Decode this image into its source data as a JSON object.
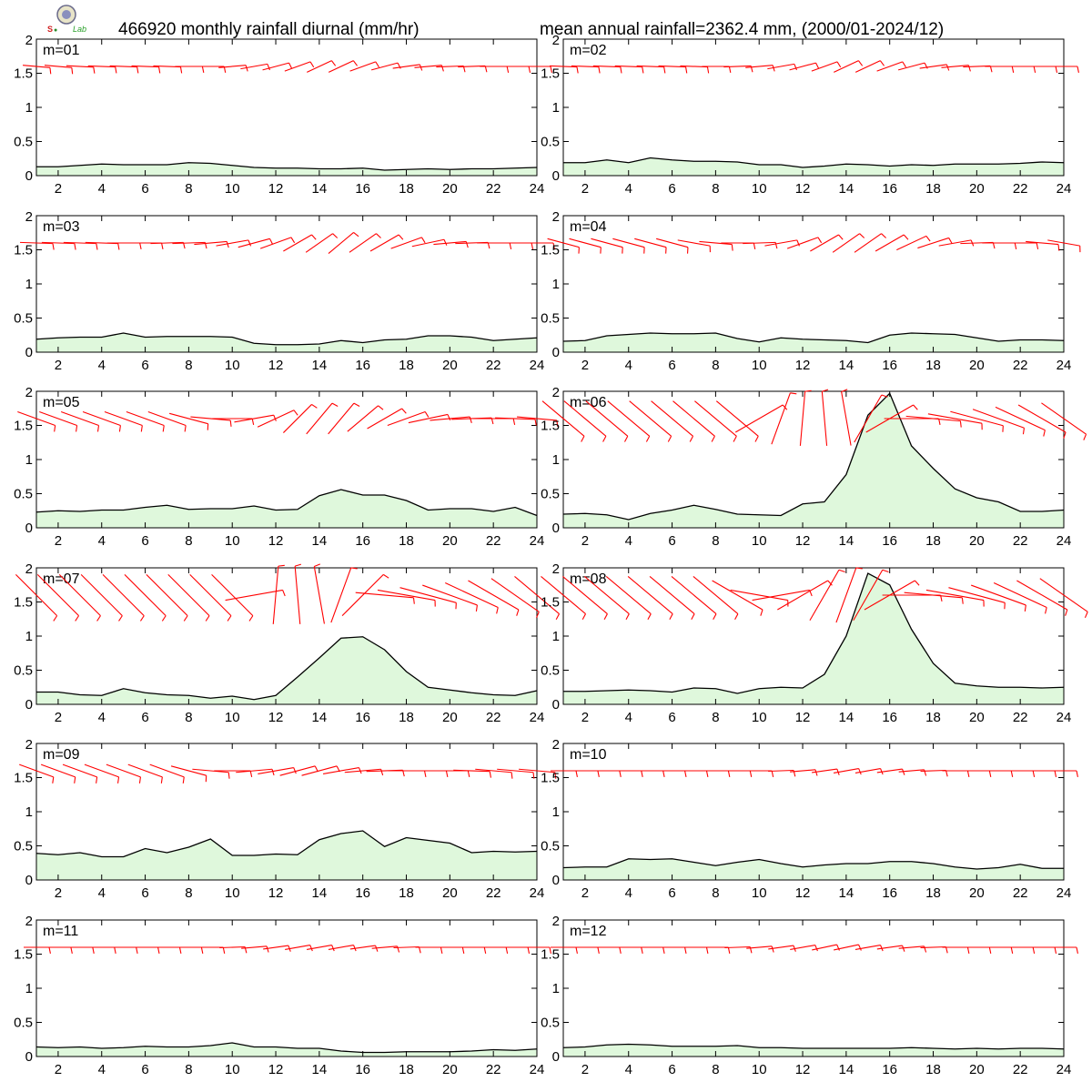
{
  "header": {
    "title_left": "466920 monthly rainfall diurnal (mm/hr)",
    "title_right": "mean annual rainfall=2362.4 mm, (2000/01-2024/12)",
    "logo_text": "Lab"
  },
  "colors": {
    "area_fill": "#dff8dc",
    "rain_line": "#000000",
    "wind_barb": "#ff0000",
    "frame": "#000000"
  },
  "chart_data": {
    "type": "area",
    "panel_type": "small-multiples",
    "title": "466920 monthly rainfall diurnal (mm/hr)",
    "subtitle": "mean annual rainfall=2362.4 mm, (2000/01-2024/12)",
    "x": [
      1,
      2,
      3,
      4,
      5,
      6,
      7,
      8,
      9,
      10,
      11,
      12,
      13,
      14,
      15,
      16,
      17,
      18,
      19,
      20,
      21,
      22,
      23,
      24
    ],
    "xticks": [
      2,
      4,
      6,
      8,
      10,
      12,
      14,
      16,
      18,
      20,
      22,
      24
    ],
    "xlim": [
      1,
      24
    ],
    "ylim": [
      0,
      2
    ],
    "yticks": [
      0,
      0.5,
      1,
      1.5,
      2
    ],
    "ytick_labels": [
      "0",
      "0.5",
      "1",
      "1.5",
      "2"
    ],
    "overlay": "red wind barbs drawn along y = 1.6 for each hour",
    "panels": [
      {
        "label": "m=01",
        "values": [
          0.13,
          0.13,
          0.15,
          0.17,
          0.16,
          0.16,
          0.16,
          0.19,
          0.18,
          0.15,
          0.12,
          0.11,
          0.11,
          0.1,
          0.1,
          0.11,
          0.08,
          0.09,
          0.1,
          0.09,
          0.1,
          0.1,
          0.11,
          0.12
        ]
      },
      {
        "label": "m=02",
        "values": [
          0.19,
          0.19,
          0.23,
          0.19,
          0.26,
          0.23,
          0.21,
          0.21,
          0.2,
          0.16,
          0.16,
          0.12,
          0.14,
          0.17,
          0.16,
          0.14,
          0.16,
          0.15,
          0.17,
          0.17,
          0.17,
          0.18,
          0.2,
          0.19
        ]
      },
      {
        "label": "m=03",
        "values": [
          0.19,
          0.21,
          0.22,
          0.22,
          0.28,
          0.22,
          0.23,
          0.23,
          0.23,
          0.22,
          0.13,
          0.11,
          0.11,
          0.12,
          0.17,
          0.14,
          0.18,
          0.19,
          0.24,
          0.24,
          0.22,
          0.17,
          0.19,
          0.21
        ]
      },
      {
        "label": "m=04",
        "values": [
          0.16,
          0.17,
          0.24,
          0.26,
          0.28,
          0.27,
          0.27,
          0.28,
          0.2,
          0.15,
          0.21,
          0.19,
          0.18,
          0.17,
          0.14,
          0.25,
          0.28,
          0.27,
          0.26,
          0.21,
          0.16,
          0.18,
          0.18,
          0.17
        ]
      },
      {
        "label": "m=05",
        "values": [
          0.23,
          0.25,
          0.24,
          0.26,
          0.26,
          0.3,
          0.33,
          0.27,
          0.28,
          0.28,
          0.32,
          0.26,
          0.27,
          0.47,
          0.56,
          0.48,
          0.48,
          0.4,
          0.26,
          0.28,
          0.28,
          0.24,
          0.3,
          0.18
        ]
      },
      {
        "label": "m=06",
        "values": [
          0.2,
          0.21,
          0.19,
          0.12,
          0.21,
          0.26,
          0.33,
          0.27,
          0.2,
          0.19,
          0.18,
          0.35,
          0.38,
          0.78,
          1.65,
          1.97,
          1.2,
          0.87,
          0.57,
          0.44,
          0.38,
          0.24,
          0.24,
          0.26
        ]
      },
      {
        "label": "m=07",
        "values": [
          0.18,
          0.18,
          0.14,
          0.13,
          0.23,
          0.17,
          0.14,
          0.13,
          0.09,
          0.12,
          0.07,
          0.13,
          0.4,
          0.68,
          0.97,
          0.99,
          0.8,
          0.48,
          0.25,
          0.21,
          0.17,
          0.14,
          0.13,
          0.2
        ]
      },
      {
        "label": "m=08",
        "values": [
          0.19,
          0.19,
          0.2,
          0.21,
          0.2,
          0.18,
          0.24,
          0.23,
          0.16,
          0.23,
          0.25,
          0.24,
          0.44,
          1.0,
          1.92,
          1.75,
          1.1,
          0.6,
          0.31,
          0.27,
          0.25,
          0.25,
          0.24,
          0.25
        ]
      },
      {
        "label": "m=09",
        "values": [
          0.39,
          0.37,
          0.4,
          0.34,
          0.34,
          0.46,
          0.4,
          0.48,
          0.6,
          0.36,
          0.36,
          0.38,
          0.37,
          0.59,
          0.68,
          0.72,
          0.49,
          0.62,
          0.58,
          0.54,
          0.4,
          0.42,
          0.41,
          0.42
        ]
      },
      {
        "label": "m=10",
        "values": [
          0.18,
          0.19,
          0.19,
          0.31,
          0.3,
          0.31,
          0.26,
          0.21,
          0.26,
          0.3,
          0.24,
          0.19,
          0.22,
          0.24,
          0.24,
          0.27,
          0.27,
          0.24,
          0.19,
          0.16,
          0.18,
          0.23,
          0.17,
          0.17
        ]
      },
      {
        "label": "m=11",
        "values": [
          0.14,
          0.13,
          0.14,
          0.12,
          0.13,
          0.15,
          0.14,
          0.14,
          0.16,
          0.2,
          0.14,
          0.14,
          0.12,
          0.12,
          0.08,
          0.06,
          0.06,
          0.07,
          0.07,
          0.07,
          0.08,
          0.1,
          0.09,
          0.11
        ]
      },
      {
        "label": "m=12",
        "values": [
          0.13,
          0.14,
          0.17,
          0.18,
          0.17,
          0.15,
          0.15,
          0.15,
          0.16,
          0.13,
          0.13,
          0.12,
          0.12,
          0.12,
          0.12,
          0.12,
          0.13,
          0.12,
          0.11,
          0.12,
          0.11,
          0.12,
          0.12,
          0.11
        ]
      }
    ],
    "wind_barbs": [
      {
        "dir_deg": [
          95,
          95,
          93,
          92,
          92,
          92,
          92,
          90,
          90,
          85,
          80,
          75,
          70,
          65,
          65,
          70,
          75,
          82,
          85,
          88,
          88,
          90,
          90,
          90
        ],
        "len_px": 15
      },
      {
        "dir_deg": [
          92,
          92,
          92,
          92,
          92,
          92,
          92,
          90,
          88,
          85,
          80,
          75,
          70,
          65,
          65,
          70,
          75,
          82,
          85,
          88,
          90,
          90,
          90,
          90
        ],
        "len_px": 15
      },
      {
        "dir_deg": [
          92,
          92,
          92,
          92,
          90,
          90,
          88,
          88,
          85,
          80,
          75,
          70,
          60,
          55,
          50,
          55,
          60,
          70,
          78,
          85,
          88,
          90,
          90,
          90
        ],
        "len_px": 18
      },
      {
        "dir_deg": [
          105,
          105,
          105,
          105,
          105,
          105,
          100,
          95,
          90,
          88,
          80,
          70,
          60,
          55,
          55,
          60,
          65,
          72,
          80,
          88,
          90,
          90,
          95,
          100
        ],
        "len_px": 18
      },
      {
        "dir_deg": [
          110,
          110,
          110,
          110,
          110,
          110,
          110,
          105,
          95,
          90,
          80,
          65,
          45,
          40,
          40,
          50,
          60,
          70,
          78,
          85,
          88,
          90,
          92,
          95
        ],
        "len_px": 22
      },
      {
        "dir_deg": [
          130,
          130,
          130,
          130,
          130,
          130,
          130,
          130,
          130,
          60,
          20,
          5,
          355,
          350,
          30,
          60,
          90,
          95,
          100,
          105,
          110,
          115,
          120,
          125
        ],
        "len_px": 30
      },
      {
        "dir_deg": [
          135,
          135,
          135,
          135,
          135,
          135,
          135,
          135,
          135,
          135,
          80,
          5,
          355,
          350,
          20,
          45,
          95,
          100,
          105,
          110,
          115,
          120,
          125,
          130
        ],
        "len_px": 32
      },
      {
        "dir_deg": [
          130,
          130,
          130,
          130,
          130,
          130,
          130,
          130,
          120,
          100,
          80,
          60,
          30,
          20,
          30,
          60,
          90,
          95,
          100,
          105,
          110,
          115,
          120,
          125
        ],
        "len_px": 32
      },
      {
        "dir_deg": [
          110,
          110,
          110,
          110,
          110,
          110,
          110,
          105,
          95,
          90,
          85,
          80,
          75,
          75,
          80,
          85,
          88,
          90,
          90,
          90,
          92,
          95,
          95,
          95
        ],
        "len_px": 20
      },
      {
        "dir_deg": [
          90,
          90,
          90,
          90,
          90,
          90,
          90,
          90,
          90,
          90,
          88,
          85,
          82,
          80,
          80,
          82,
          85,
          88,
          90,
          90,
          90,
          90,
          90,
          90
        ],
        "len_px": 14
      },
      {
        "dir_deg": [
          90,
          90,
          90,
          90,
          90,
          90,
          90,
          90,
          90,
          88,
          85,
          82,
          80,
          80,
          80,
          82,
          85,
          88,
          90,
          90,
          90,
          90,
          90,
          90
        ],
        "len_px": 14
      },
      {
        "dir_deg": [
          90,
          90,
          90,
          90,
          90,
          90,
          90,
          90,
          88,
          85,
          82,
          80,
          78,
          78,
          80,
          82,
          85,
          88,
          90,
          90,
          90,
          90,
          90,
          90
        ],
        "len_px": 14
      }
    ]
  }
}
